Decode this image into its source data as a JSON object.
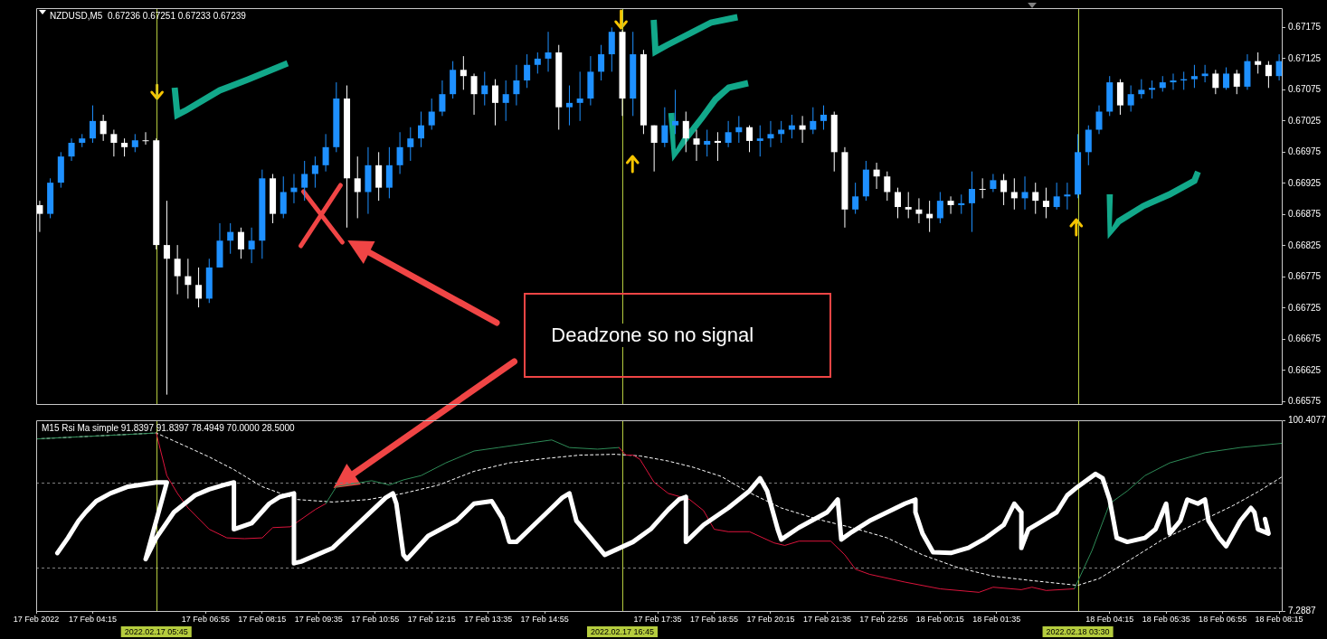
{
  "chart_data": [
    {
      "type": "candlestick",
      "title": "NZDUSD,M5  0.67236 0.67251 0.67233 0.67239",
      "tick_labels": "y",
      "xlim": [
        "2022-02-17T02:55",
        "2022-02-18T08:20"
      ],
      "ylim": [
        0.66571,
        0.67206
      ],
      "yticks": [
        0.66575,
        0.66625,
        0.66675,
        0.66725,
        0.66775,
        0.66825,
        0.66875,
        0.66925,
        0.66975,
        0.67025,
        0.67075,
        0.67125,
        0.67175
      ],
      "x": [
        "2022-02-17T03:00",
        "2022-02-17T03:15",
        "2022-02-17T03:30",
        "2022-02-17T03:45",
        "2022-02-17T04:00",
        "2022-02-17T04:15",
        "2022-02-17T04:30",
        "2022-02-17T04:45",
        "2022-02-17T05:00",
        "2022-02-17T05:15",
        "2022-02-17T05:30",
        "2022-02-17T05:45",
        "2022-02-17T06:00",
        "2022-02-17T06:15",
        "2022-02-17T06:30",
        "2022-02-17T06:45",
        "2022-02-17T07:00",
        "2022-02-17T07:15",
        "2022-02-17T07:30",
        "2022-02-17T07:45",
        "2022-02-17T08:00",
        "2022-02-17T08:15",
        "2022-02-17T08:30",
        "2022-02-17T08:45",
        "2022-02-17T09:00",
        "2022-02-17T09:15",
        "2022-02-17T09:30",
        "2022-02-17T09:45",
        "2022-02-17T10:00",
        "2022-02-17T10:15",
        "2022-02-17T10:30",
        "2022-02-17T10:45",
        "2022-02-17T11:00",
        "2022-02-17T11:15",
        "2022-02-17T11:30",
        "2022-02-17T11:45",
        "2022-02-17T12:00",
        "2022-02-17T12:15",
        "2022-02-17T12:30",
        "2022-02-17T12:45",
        "2022-02-17T13:00",
        "2022-02-17T13:15",
        "2022-02-17T13:30",
        "2022-02-17T13:45",
        "2022-02-17T14:00",
        "2022-02-17T14:15",
        "2022-02-17T14:30",
        "2022-02-17T14:45",
        "2022-02-17T15:00",
        "2022-02-17T15:15",
        "2022-02-17T15:30",
        "2022-02-17T15:45",
        "2022-02-17T16:00",
        "2022-02-17T16:15",
        "2022-02-17T16:30",
        "2022-02-17T16:45",
        "2022-02-17T17:00",
        "2022-02-17T17:15",
        "2022-02-17T17:30",
        "2022-02-17T17:45",
        "2022-02-17T18:00",
        "2022-02-17T18:15",
        "2022-02-17T18:30",
        "2022-02-17T18:45",
        "2022-02-17T19:00",
        "2022-02-17T19:15",
        "2022-02-17T19:30",
        "2022-02-17T19:45",
        "2022-02-17T20:00",
        "2022-02-17T20:15",
        "2022-02-17T20:30",
        "2022-02-17T20:45",
        "2022-02-17T21:00",
        "2022-02-17T21:15",
        "2022-02-17T21:30",
        "2022-02-17T21:45",
        "2022-02-17T22:00",
        "2022-02-17T22:15",
        "2022-02-17T22:30",
        "2022-02-17T22:45",
        "2022-02-17T23:00",
        "2022-02-17T23:15",
        "2022-02-17T23:30",
        "2022-02-17T23:45",
        "2022-02-18T00:00",
        "2022-02-18T00:15",
        "2022-02-18T00:30",
        "2022-02-18T00:45",
        "2022-02-18T01:00",
        "2022-02-18T01:15",
        "2022-02-18T01:30",
        "2022-02-18T01:45",
        "2022-02-18T02:00",
        "2022-02-18T02:15",
        "2022-02-18T02:30",
        "2022-02-18T02:45",
        "2022-02-18T03:00",
        "2022-02-18T03:15",
        "2022-02-18T03:30",
        "2022-02-18T03:45",
        "2022-02-18T04:00",
        "2022-02-18T04:15",
        "2022-02-18T04:30",
        "2022-02-18T04:45",
        "2022-02-18T05:00",
        "2022-02-18T05:15",
        "2022-02-18T05:30",
        "2022-02-18T05:45",
        "2022-02-18T06:00",
        "2022-02-18T06:15",
        "2022-02-18T06:30",
        "2022-02-18T06:45",
        "2022-02-18T07:00",
        "2022-02-18T07:15",
        "2022-02-18T07:30",
        "2022-02-18T07:45",
        "2022-02-18T08:00",
        "2022-02-18T08:15"
      ],
      "ohlc": [
        [
          0.6689,
          0.66897,
          0.66847,
          0.66876
        ],
        [
          0.66876,
          0.66933,
          0.66869,
          0.66926
        ],
        [
          0.66926,
          0.66975,
          0.66918,
          0.66968
        ],
        [
          0.66968,
          0.66997,
          0.66961,
          0.6699
        ],
        [
          0.6699,
          0.67004,
          0.66983,
          0.66997
        ],
        [
          0.66997,
          0.6705,
          0.6699,
          0.67025
        ],
        [
          0.67025,
          0.67035,
          0.66993,
          0.67004
        ],
        [
          0.67004,
          0.67011,
          0.66968,
          0.6699
        ],
        [
          0.6699,
          0.66997,
          0.66968,
          0.66983
        ],
        [
          0.66983,
          0.67004,
          0.66975,
          0.66994
        ],
        [
          0.66994,
          0.67007,
          0.66987,
          0.66994
        ],
        [
          0.66994,
          0.66997,
          0.66819,
          0.66826
        ],
        [
          0.66826,
          0.66897,
          0.66586,
          0.66804
        ],
        [
          0.66804,
          0.66826,
          0.66747,
          0.66776
        ],
        [
          0.66776,
          0.66804,
          0.6674,
          0.66762
        ],
        [
          0.66762,
          0.6679,
          0.66726,
          0.6674
        ],
        [
          0.6674,
          0.66804,
          0.66733,
          0.6679
        ],
        [
          0.6679,
          0.66861,
          0.6679,
          0.66833
        ],
        [
          0.66833,
          0.66861,
          0.66812,
          0.66847
        ],
        [
          0.66847,
          0.66854,
          0.66804,
          0.66819
        ],
        [
          0.66819,
          0.66854,
          0.66797,
          0.66833
        ],
        [
          0.66833,
          0.66947,
          0.66804,
          0.66933
        ],
        [
          0.66933,
          0.6694,
          0.66861,
          0.66876
        ],
        [
          0.66876,
          0.66936,
          0.66869,
          0.66911
        ],
        [
          0.66911,
          0.6694,
          0.66893,
          0.66918
        ],
        [
          0.66918,
          0.66961,
          0.66897,
          0.6694
        ],
        [
          0.6694,
          0.66968,
          0.66918,
          0.66954
        ],
        [
          0.66954,
          0.67004,
          0.66944,
          0.66983
        ],
        [
          0.66983,
          0.67087,
          0.66975,
          0.67061
        ],
        [
          0.67061,
          0.67082,
          0.66854,
          0.66933
        ],
        [
          0.66933,
          0.66968,
          0.66869,
          0.66911
        ],
        [
          0.66911,
          0.66983,
          0.66876,
          0.66954
        ],
        [
          0.66954,
          0.66975,
          0.66897,
          0.66918
        ],
        [
          0.66918,
          0.66983,
          0.66901,
          0.66954
        ],
        [
          0.66954,
          0.67007,
          0.6694,
          0.66983
        ],
        [
          0.66983,
          0.67015,
          0.66961,
          0.66997
        ],
        [
          0.66997,
          0.6704,
          0.66983,
          0.67018
        ],
        [
          0.67018,
          0.67061,
          0.67011,
          0.6704
        ],
        [
          0.6704,
          0.6709,
          0.67033,
          0.67068
        ],
        [
          0.67068,
          0.67121,
          0.67061,
          0.67107
        ],
        [
          0.67107,
          0.67129,
          0.67075,
          0.67097
        ],
        [
          0.67097,
          0.67101,
          0.67035,
          0.67068
        ],
        [
          0.67068,
          0.67104,
          0.6705,
          0.67082
        ],
        [
          0.67082,
          0.67092,
          0.67018,
          0.67054
        ],
        [
          0.67054,
          0.6709,
          0.67025,
          0.67068
        ],
        [
          0.67068,
          0.67115,
          0.6705,
          0.6709
        ],
        [
          0.6709,
          0.67132,
          0.67078,
          0.67115
        ],
        [
          0.67115,
          0.67135,
          0.67101,
          0.67125
        ],
        [
          0.67125,
          0.67168,
          0.67104,
          0.67135
        ],
        [
          0.67135,
          0.67147,
          0.67011,
          0.67047
        ],
        [
          0.67047,
          0.67082,
          0.67018,
          0.67054
        ],
        [
          0.67054,
          0.67104,
          0.67025,
          0.67061
        ],
        [
          0.67061,
          0.67129,
          0.6705,
          0.67104
        ],
        [
          0.67104,
          0.67147,
          0.6709,
          0.67132
        ],
        [
          0.67132,
          0.67175,
          0.67104,
          0.67168
        ],
        [
          0.67168,
          0.67171,
          0.67033,
          0.67061
        ],
        [
          0.67061,
          0.67168,
          0.67033,
          0.67132
        ],
        [
          0.67132,
          0.67139,
          0.67004,
          0.67018
        ],
        [
          0.67018,
          0.67018,
          0.66944,
          0.6699
        ],
        [
          0.6699,
          0.67047,
          0.66983,
          0.67018
        ],
        [
          0.67018,
          0.67075,
          0.67004,
          0.67025
        ],
        [
          0.67025,
          0.6704,
          0.66975,
          0.66997
        ],
        [
          0.66997,
          0.67011,
          0.66961,
          0.66987
        ],
        [
          0.66987,
          0.67011,
          0.66968,
          0.66993
        ],
        [
          0.66993,
          0.67007,
          0.66961,
          0.6699
        ],
        [
          0.6699,
          0.67025,
          0.66983,
          0.67007
        ],
        [
          0.67007,
          0.67033,
          0.6699,
          0.67015
        ],
        [
          0.67015,
          0.67018,
          0.66975,
          0.66993
        ],
        [
          0.66993,
          0.67018,
          0.66968,
          0.66997
        ],
        [
          0.66997,
          0.67025,
          0.66983,
          0.67004
        ],
        [
          0.67004,
          0.67025,
          0.6699,
          0.67011
        ],
        [
          0.67011,
          0.67035,
          0.66997,
          0.67018
        ],
        [
          0.67018,
          0.67033,
          0.6699,
          0.67011
        ],
        [
          0.67011,
          0.67047,
          0.67004,
          0.67025
        ],
        [
          0.67025,
          0.6705,
          0.67011,
          0.67035
        ],
        [
          0.67035,
          0.6704,
          0.66944,
          0.66975
        ],
        [
          0.66975,
          0.66983,
          0.66854,
          0.66883
        ],
        [
          0.66883,
          0.66926,
          0.66876,
          0.66904
        ],
        [
          0.66904,
          0.66961,
          0.66897,
          0.66947
        ],
        [
          0.66947,
          0.66958,
          0.66916,
          0.66936
        ],
        [
          0.66936,
          0.66944,
          0.66897,
          0.66911
        ],
        [
          0.66911,
          0.66918,
          0.66869,
          0.66887
        ],
        [
          0.66887,
          0.66911,
          0.66869,
          0.66883
        ],
        [
          0.66883,
          0.66901,
          0.66861,
          0.66876
        ],
        [
          0.66876,
          0.66897,
          0.66847,
          0.66869
        ],
        [
          0.66869,
          0.66911,
          0.66861,
          0.66897
        ],
        [
          0.66897,
          0.66904,
          0.66876,
          0.6689
        ],
        [
          0.6689,
          0.66907,
          0.66876,
          0.66893
        ],
        [
          0.66893,
          0.66944,
          0.66847,
          0.66916
        ],
        [
          0.66916,
          0.66933,
          0.66901,
          0.66916
        ],
        [
          0.66916,
          0.6694,
          0.66911,
          0.6693
        ],
        [
          0.6693,
          0.6694,
          0.6689,
          0.66911
        ],
        [
          0.66911,
          0.66933,
          0.66883,
          0.66901
        ],
        [
          0.66901,
          0.66936,
          0.66883,
          0.66911
        ],
        [
          0.66911,
          0.66926,
          0.66876,
          0.66897
        ],
        [
          0.66897,
          0.66918,
          0.66869,
          0.66887
        ],
        [
          0.66887,
          0.66926,
          0.66883,
          0.66904
        ],
        [
          0.66904,
          0.66926,
          0.66883,
          0.66907
        ],
        [
          0.66907,
          0.67004,
          0.66901,
          0.66975
        ],
        [
          0.66975,
          0.67018,
          0.66954,
          0.67011
        ],
        [
          0.67011,
          0.6705,
          0.67004,
          0.6704
        ],
        [
          0.6704,
          0.67097,
          0.67033,
          0.67087
        ],
        [
          0.67087,
          0.67092,
          0.67035,
          0.6705
        ],
        [
          0.6705,
          0.67082,
          0.6704,
          0.67068
        ],
        [
          0.67068,
          0.67092,
          0.67061,
          0.67075
        ],
        [
          0.67075,
          0.6709,
          0.67061,
          0.67078
        ],
        [
          0.67078,
          0.67097,
          0.67072,
          0.67087
        ],
        [
          0.67087,
          0.67101,
          0.67075,
          0.6709
        ],
        [
          0.6709,
          0.67104,
          0.67075,
          0.67092
        ],
        [
          0.67092,
          0.67115,
          0.67078,
          0.67097
        ],
        [
          0.67097,
          0.67115,
          0.67087,
          0.67101
        ],
        [
          0.67101,
          0.67107,
          0.67068,
          0.67078
        ],
        [
          0.67078,
          0.67111,
          0.67075,
          0.67101
        ],
        [
          0.67101,
          0.67107,
          0.67068,
          0.6708
        ],
        [
          0.6708,
          0.67132,
          0.67075,
          0.67121
        ],
        [
          0.67121,
          0.67135,
          0.67101,
          0.67115
        ],
        [
          0.67115,
          0.67121,
          0.67078,
          0.67097
        ],
        [
          0.67097,
          0.67132,
          0.6709,
          0.67121
        ]
      ],
      "colors": [
        "#ffffff",
        "#1e90ff",
        "#1e90ff",
        "#1e90ff",
        "#1e90ff",
        "#1e90ff",
        "#ffffff",
        "#ffffff",
        "#ffffff",
        "#1e90ff",
        "#ffffff",
        "#ffffff",
        "#ffffff",
        "#ffffff",
        "#ffffff",
        "#ffffff",
        "#1e90ff",
        "#1e90ff",
        "#1e90ff",
        "#ffffff",
        "#1e90ff",
        "#1e90ff",
        "#ffffff",
        "#1e90ff",
        "#1e90ff",
        "#1e90ff",
        "#1e90ff",
        "#1e90ff",
        "#1e90ff",
        "#ffffff",
        "#ffffff",
        "#1e90ff",
        "#ffffff",
        "#1e90ff",
        "#1e90ff",
        "#1e90ff",
        "#1e90ff",
        "#1e90ff",
        "#1e90ff",
        "#1e90ff",
        "#ffffff",
        "#ffffff",
        "#1e90ff",
        "#ffffff",
        "#1e90ff",
        "#1e90ff",
        "#1e90ff",
        "#1e90ff",
        "#1e90ff",
        "#ffffff",
        "#1e90ff",
        "#1e90ff",
        "#1e90ff",
        "#1e90ff",
        "#1e90ff",
        "#ffffff",
        "#1e90ff",
        "#ffffff",
        "#ffffff",
        "#1e90ff",
        "#1e90ff",
        "#ffffff",
        "#ffffff",
        "#1e90ff",
        "#ffffff",
        "#1e90ff",
        "#1e90ff",
        "#ffffff",
        "#1e90ff",
        "#1e90ff",
        "#1e90ff",
        "#1e90ff",
        "#ffffff",
        "#1e90ff",
        "#1e90ff",
        "#ffffff",
        "#ffffff",
        "#1e90ff",
        "#1e90ff",
        "#ffffff",
        "#ffffff",
        "#ffffff",
        "#ffffff",
        "#ffffff",
        "#ffffff",
        "#1e90ff",
        "#ffffff",
        "#1e90ff",
        "#1e90ff",
        "#ffffff",
        "#1e90ff",
        "#ffffff",
        "#ffffff",
        "#1e90ff",
        "#ffffff",
        "#ffffff",
        "#1e90ff",
        "#1e90ff",
        "#1e90ff",
        "#1e90ff",
        "#1e90ff",
        "#1e90ff",
        "#ffffff",
        "#1e90ff",
        "#1e90ff",
        "#1e90ff",
        "#1e90ff",
        "#1e90ff",
        "#1e90ff",
        "#1e90ff",
        "#1e90ff",
        "#ffffff",
        "#1e90ff",
        "#ffffff",
        "#1e90ff",
        "#ffffff",
        "#ffffff",
        "#1e90ff"
      ],
      "ref_lines": [
        {
          "axis": "x",
          "value": "2022-02-17T05:45",
          "color": "#b5cc3e"
        },
        {
          "axis": "x",
          "value": "2022-02-17T16:45",
          "color": "#b5cc3e"
        },
        {
          "axis": "x",
          "value": "2022-02-18T03:30",
          "color": "#b5cc3e"
        }
      ],
      "annotations": [
        "Deadzone so no signal"
      ]
    },
    {
      "type": "line",
      "title": "M15 Rsi Ma simple 91.8397 91.8397 78.4949 70.0000 28.5000",
      "xlim": [
        "2022-02-17T02:55",
        "2022-02-18T08:20"
      ],
      "xticks": [
        {
          "value": "2022-02-17T02:55",
          "label": "17 Feb 2022"
        },
        {
          "value": "2022-02-17T04:15",
          "label": "17 Feb 04:15"
        },
        {
          "value": "2022-02-17T06:55",
          "label": "17 Feb 06:55"
        },
        {
          "value": "2022-02-17T08:15",
          "label": "17 Feb 08:15"
        },
        {
          "value": "2022-02-17T09:35",
          "label": "17 Feb 09:35"
        },
        {
          "value": "2022-02-17T10:55",
          "label": "17 Feb 10:55"
        },
        {
          "value": "2022-02-17T12:15",
          "label": "17 Feb 12:15"
        },
        {
          "value": "2022-02-17T13:35",
          "label": "17 Feb 13:35"
        },
        {
          "value": "2022-02-17T14:55",
          "label": "17 Feb 14:55"
        },
        {
          "value": "2022-02-17T17:35",
          "label": "17 Feb 17:35"
        },
        {
          "value": "2022-02-17T18:55",
          "label": "17 Feb 18:55"
        },
        {
          "value": "2022-02-17T20:15",
          "label": "17 Feb 20:15"
        },
        {
          "value": "2022-02-17T21:35",
          "label": "17 Feb 21:35"
        },
        {
          "value": "2022-02-17T22:55",
          "label": "17 Feb 22:55"
        },
        {
          "value": "2022-02-18T00:15",
          "label": "18 Feb 00:15"
        },
        {
          "value": "2022-02-18T01:35",
          "label": "18 Feb 01:35"
        },
        {
          "value": "2022-02-18T04:15",
          "label": "18 Feb 04:15"
        },
        {
          "value": "2022-02-18T05:35",
          "label": "18 Feb 05:35"
        },
        {
          "value": "2022-02-18T06:55",
          "label": "18 Feb 06:55"
        },
        {
          "value": "2022-02-18T08:15",
          "label": "18 Feb 08:15"
        }
      ],
      "ylim": [
        7.2887,
        100.4077
      ],
      "yticks": [
        7.2887,
        100.4077
      ],
      "series": [
        {
          "color": "#ffffff",
          "line_style": "dashed",
          "x": [
            "2022-02-17T02:55",
            "2022-02-17T05:45",
            "2022-02-17T06:20",
            "2022-02-17T07:00",
            "2022-02-17T07:35",
            "2022-02-17T08:15",
            "2022-02-17T09:05",
            "2022-02-17T09:55",
            "2022-02-17T10:45",
            "2022-02-17T11:35",
            "2022-02-17T12:25",
            "2022-02-17T13:15",
            "2022-02-17T14:05",
            "2022-02-17T14:55",
            "2022-02-17T15:45",
            "2022-02-17T16:35",
            "2022-02-17T17:10",
            "2022-02-17T17:50",
            "2022-02-17T18:25",
            "2022-02-17T19:05",
            "2022-02-17T19:40",
            "2022-02-17T20:30",
            "2022-02-17T21:20",
            "2022-02-17T22:10",
            "2022-02-17T23:00",
            "2022-02-17T23:50",
            "2022-02-18T00:40",
            "2022-02-18T01:30",
            "2022-02-18T02:20",
            "2022-02-18T03:30",
            "2022-02-18T04:00",
            "2022-02-18T04:40",
            "2022-02-18T05:30",
            "2022-02-18T06:20",
            "2022-02-18T07:10",
            "2022-02-18T07:45",
            "2022-02-18T08:20"
          ],
          "values": [
            91.3,
            94.2,
            88.8,
            82.5,
            76.3,
            68.0,
            61.7,
            60.5,
            61.7,
            64.7,
            68.8,
            75.5,
            79.6,
            81.7,
            83.4,
            83.8,
            83.0,
            80.5,
            77.5,
            73.0,
            65.9,
            57.6,
            52.2,
            48.0,
            43.0,
            34.7,
            28.5,
            24.3,
            22.3,
            19.8,
            23.1,
            31.4,
            42.2,
            50.5,
            58.8,
            65.5,
            73.0
          ]
        },
        {
          "color": "#2e8b57",
          "x": [
            "2022-02-17T02:55",
            "2022-02-17T04:05",
            "2022-02-17T04:55",
            "2022-02-17T05:45"
          ],
          "values": [
            91.3,
            92.5,
            93.3,
            94.2
          ]
        },
        {
          "color": "#dc143c",
          "x": [
            "2022-02-17T05:45",
            "2022-02-17T06:00",
            "2022-02-17T06:15",
            "2022-02-17T06:30",
            "2022-02-17T07:00",
            "2022-02-17T07:25",
            "2022-02-17T07:50",
            "2022-02-17T08:15",
            "2022-02-17T08:30",
            "2022-02-17T08:55",
            "2022-02-17T09:30",
            "2022-02-17T09:45"
          ],
          "values": [
            94.2,
            73.4,
            64.7,
            57.6,
            47.2,
            43.0,
            42.6,
            43.0,
            48.0,
            48.4,
            56.8,
            59.7
          ]
        },
        {
          "color": "#2e8b57",
          "x": [
            "2022-02-17T09:45",
            "2022-02-17T10:00",
            "2022-02-17T10:20",
            "2022-02-17T10:50",
            "2022-02-17T11:00",
            "2022-02-17T11:15",
            "2022-02-17T11:35",
            "2022-02-17T12:00",
            "2022-02-17T12:35",
            "2022-02-17T13:15",
            "2022-02-17T13:50",
            "2022-02-17T14:40",
            "2022-02-17T15:05",
            "2022-02-17T15:30",
            "2022-02-17T16:10",
            "2022-02-17T16:40"
          ],
          "values": [
            59.7,
            68.0,
            69.2,
            70.9,
            70.1,
            68.8,
            71.3,
            73.4,
            79.6,
            85.4,
            87.1,
            89.6,
            90.8,
            87.1,
            86.3,
            87.1
          ]
        },
        {
          "color": "#dc143c",
          "x": [
            "2022-02-17T16:40",
            "2022-02-17T16:50",
            "2022-02-17T17:00",
            "2022-02-17T17:10",
            "2022-02-17T17:30",
            "2022-02-17T17:50",
            "2022-02-17T18:20",
            "2022-02-17T18:40",
            "2022-02-17T18:55",
            "2022-02-17T19:15",
            "2022-02-17T19:45",
            "2022-02-17T20:20",
            "2022-02-17T20:35",
            "2022-02-17T20:55",
            "2022-02-17T21:40",
            "2022-02-17T22:00",
            "2022-02-17T22:15",
            "2022-02-17T22:35",
            "2022-02-17T23:25",
            "2022-02-18T00:15",
            "2022-02-18T01:10",
            "2022-02-18T01:30",
            "2022-02-18T02:10",
            "2022-02-18T02:25",
            "2022-02-18T02:45",
            "2022-02-18T03:25"
          ],
          "values": [
            87.1,
            83.4,
            83.4,
            81.3,
            70.1,
            64.7,
            61.8,
            56.3,
            47.2,
            46.0,
            46.0,
            40.5,
            39.3,
            41.4,
            41.4,
            34.7,
            27.7,
            25.2,
            21.4,
            18.1,
            16.4,
            18.9,
            17.7,
            18.9,
            17.3,
            18.1
          ]
        },
        {
          "color": "#2e8b57",
          "x": [
            "2022-02-18T03:25",
            "2022-02-18T03:50",
            "2022-02-18T04:15",
            "2022-02-18T04:40",
            "2022-02-18T05:05",
            "2022-02-18T05:40",
            "2022-02-18T06:30",
            "2022-02-18T07:20",
            "2022-02-18T08:20"
          ],
          "values": [
            18.1,
            36.8,
            59.7,
            65.9,
            73.4,
            79.6,
            84.6,
            87.1,
            89.2
          ]
        },
        {
          "color": "#ffffff",
          "x": [
            "2022-02-17T03:25",
            "2022-02-17T03:40",
            "2022-02-17T03:55",
            "2022-02-17T04:05",
            "2022-02-17T04:20",
            "2022-02-17T04:40",
            "2022-02-17T05:05",
            "2022-02-17T05:45",
            "2022-02-17T06:00",
            "2022-02-17T05:30",
            "2022-02-17T05:45",
            "2022-02-17T06:10",
            "2022-02-17T06:40",
            "2022-02-17T07:00",
            "2022-02-17T07:25",
            "2022-02-17T07:35",
            "2022-02-17T07:35",
            "2022-02-17T08:00",
            "2022-02-17T08:25",
            "2022-02-17T08:40",
            "2022-02-17T09:00",
            "2022-02-17T09:00",
            "2022-02-17T09:10",
            "2022-02-17T09:55",
            "2022-02-17T11:10",
            "2022-02-17T11:20",
            "2022-02-17T11:25",
            "2022-02-17T11:35",
            "2022-02-17T11:40",
            "2022-02-17T12:10",
            "2022-02-17T12:50",
            "2022-02-17T13:15",
            "2022-02-17T13:40",
            "2022-02-17T13:55",
            "2022-02-17T14:05",
            "2022-02-17T14:15",
            "2022-02-17T14:40",
            "2022-02-17T15:05",
            "2022-02-17T15:20",
            "2022-02-17T15:30",
            "2022-02-17T15:40",
            "2022-02-17T15:50",
            "2022-02-17T16:20",
            "2022-02-17T17:00",
            "2022-02-17T17:25",
            "2022-02-17T17:50",
            "2022-02-17T18:05",
            "2022-02-17T18:15",
            "2022-02-17T18:15",
            "2022-02-17T18:40",
            "2022-02-17T19:15",
            "2022-02-17T19:45",
            "2022-02-17T20:00",
            "2022-02-17T20:10",
            "2022-02-17T20:25",
            "2022-02-17T20:30",
            "2022-02-17T20:55",
            "2022-02-17T21:35",
            "2022-02-17T21:50",
            "2022-02-17T21:55",
            "2022-02-17T22:10",
            "2022-02-17T22:35",
            "2022-02-17T23:00",
            "2022-02-17T23:25",
            "2022-02-17T23:40",
            "2022-02-17T23:40",
            "2022-02-17T23:50",
            "2022-02-18T00:05",
            "2022-02-18T00:30",
            "2022-02-18T00:55",
            "2022-02-18T01:20",
            "2022-02-18T01:45",
            "2022-02-18T02:00",
            "2022-02-18T02:10",
            "2022-02-18T02:10",
            "2022-02-18T02:20",
            "2022-02-18T02:40",
            "2022-02-18T03:00",
            "2022-02-18T03:15",
            "2022-02-18T03:30",
            "2022-02-18T03:55",
            "2022-02-18T04:05",
            "2022-02-18T04:15",
            "2022-02-18T04:25",
            "2022-02-18T04:40",
            "2022-02-18T05:05",
            "2022-02-18T05:20",
            "2022-02-18T05:35",
            "2022-02-18T05:40",
            "2022-02-18T05:55",
            "2022-02-18T06:05",
            "2022-02-18T06:20",
            "2022-02-18T06:30",
            "2022-02-18T06:35",
            "2022-02-18T06:50",
            "2022-02-18T07:00",
            "2022-02-18T07:20",
            "2022-02-18T07:35",
            "2022-02-18T07:40",
            "2022-02-18T07:45",
            "2022-02-18T08:00",
            "2022-02-18T07:55"
          ],
          "values": [
            35.6,
            43.0,
            51.3,
            55.5,
            60.9,
            64.7,
            68.0,
            70.1,
            70.1,
            32.6,
            43.0,
            55.5,
            63.8,
            66.7,
            69.2,
            70.1,
            47.2,
            50.1,
            59.7,
            63.0,
            64.7,
            30.6,
            31.4,
            38.1,
            62.6,
            64.7,
            59.7,
            34.7,
            32.6,
            43.9,
            51.3,
            59.7,
            60.9,
            52.6,
            41.0,
            41.0,
            49.3,
            57.6,
            62.6,
            64.7,
            51.3,
            47.2,
            34.7,
            41.0,
            47.2,
            56.8,
            61.7,
            63.0,
            41.0,
            49.3,
            57.6,
            65.9,
            72.1,
            65.9,
            47.2,
            42.2,
            48.0,
            55.5,
            61.7,
            42.2,
            45.9,
            51.3,
            55.5,
            59.7,
            61.7,
            55.5,
            45.1,
            36.0,
            35.6,
            38.1,
            43.0,
            49.3,
            59.7,
            55.5,
            38.1,
            47.2,
            51.3,
            55.5,
            63.8,
            68.0,
            74.2,
            72.1,
            61.7,
            43.0,
            41.0,
            43.0,
            47.2,
            59.7,
            45.1,
            51.3,
            61.7,
            59.7,
            61.7,
            51.3,
            43.0,
            38.9,
            51.3,
            57.6,
            55.5,
            47.2,
            45.1,
            52.2
          ]
        }
      ],
      "ref_lines": [
        {
          "axis": "y",
          "value": 70,
          "color": "#808080",
          "line_style": "dashed"
        },
        {
          "axis": "y",
          "value": 28.5,
          "color": "#808080",
          "line_style": "dashed"
        },
        {
          "axis": "x",
          "value": "2022-02-17T05:45",
          "color": "#b5cc3e",
          "label": "2022.02.17 05:45"
        },
        {
          "axis": "x",
          "value": "2022-02-17T16:45",
          "color": "#b5cc3e",
          "label": "2022.02.17 16:45"
        },
        {
          "axis": "x",
          "value": "2022-02-18T03:30",
          "color": "#b5cc3e",
          "label": "2022.02.18 03:30"
        }
      ]
    }
  ]
}
